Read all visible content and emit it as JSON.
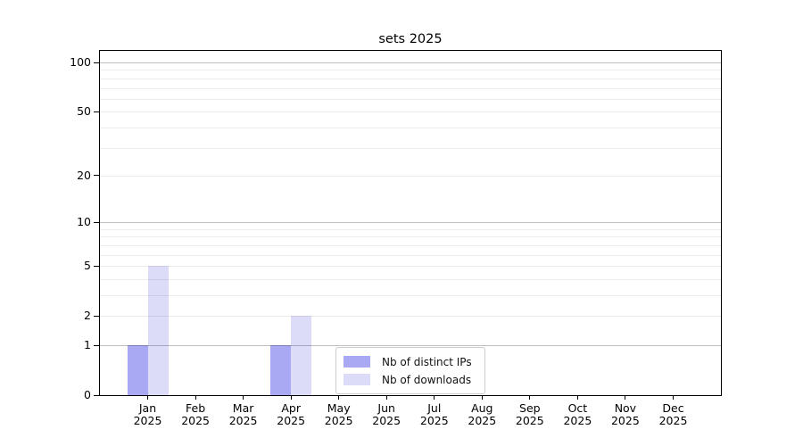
{
  "chart_data": {
    "type": "bar",
    "title": "sets 2025",
    "xlabel": "",
    "ylabel": "",
    "yscale": "log1p",
    "ylim": [
      0,
      116
    ],
    "grid": "horizontal",
    "legend_position": "inside-bottom-center",
    "categories": [
      {
        "label": "Jan",
        "sub": "2025"
      },
      {
        "label": "Feb",
        "sub": "2025"
      },
      {
        "label": "Mar",
        "sub": "2025"
      },
      {
        "label": "Apr",
        "sub": "2025"
      },
      {
        "label": "May",
        "sub": "2025"
      },
      {
        "label": "Jun",
        "sub": "2025"
      },
      {
        "label": "Jul",
        "sub": "2025"
      },
      {
        "label": "Aug",
        "sub": "2025"
      },
      {
        "label": "Sep",
        "sub": "2025"
      },
      {
        "label": "Oct",
        "sub": "2025"
      },
      {
        "label": "Nov",
        "sub": "2025"
      },
      {
        "label": "Dec",
        "sub": "2025"
      }
    ],
    "series": [
      {
        "name": "Nb of distinct IPs",
        "color": "#a9a9f3",
        "values": [
          1,
          0,
          0,
          1,
          0,
          0,
          0,
          0,
          0,
          0,
          0,
          0
        ]
      },
      {
        "name": "Nb of downloads",
        "color": "#dcdcf8",
        "values": [
          5,
          0,
          0,
          2,
          0,
          0,
          0,
          0,
          0,
          0,
          0,
          0
        ]
      }
    ],
    "y_major_ticks": [
      0,
      1,
      2,
      5,
      10,
      20,
      50,
      100
    ],
    "y_decade_lines": [
      1,
      10,
      100
    ],
    "y_minor_lines": [
      2,
      3,
      4,
      5,
      6,
      7,
      8,
      9,
      20,
      30,
      40,
      50,
      60,
      70,
      80,
      90
    ]
  },
  "colors": {
    "spine": "#000000",
    "major_grid": "rgba(0,0,0,0.25)",
    "minor_grid": "rgba(0,0,0,0.08)",
    "legend_border": "#cccccc",
    "background": "#ffffff"
  }
}
